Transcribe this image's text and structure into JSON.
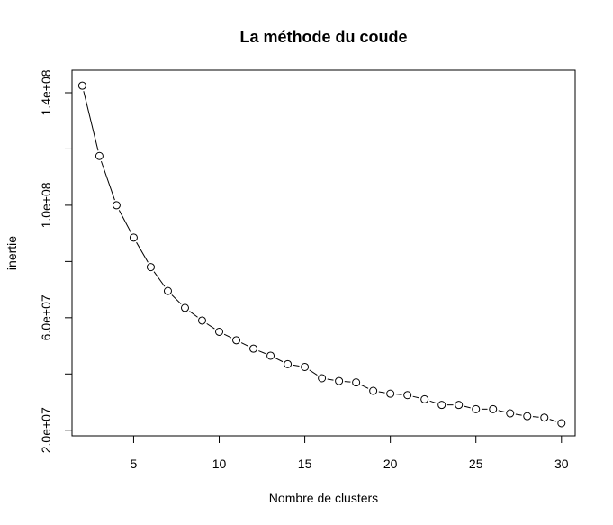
{
  "chart_data": {
    "type": "line",
    "title": "La méthode du coude",
    "xlabel": "Nombre de clusters",
    "ylabel": "inertie",
    "xlim": [
      1.4,
      30.8
    ],
    "ylim": [
      18000000,
      148000000
    ],
    "x_ticks": [
      5,
      10,
      15,
      20,
      25,
      30
    ],
    "x_tick_labels": [
      "5",
      "10",
      "15",
      "20",
      "25",
      "30"
    ],
    "y_ticks": [
      20000000,
      40000000,
      60000000,
      80000000,
      100000000,
      120000000,
      140000000
    ],
    "y_tick_labels": [
      "2.0e+07",
      "",
      "6.0e+07",
      "",
      "1.0e+08",
      "",
      "1.4e+08"
    ],
    "grid": false,
    "legend": "none",
    "line_style": "b",
    "marker": "open-circle",
    "series": [
      {
        "x": [
          2,
          3,
          4,
          5,
          6,
          7,
          8,
          9,
          10,
          11,
          12,
          13,
          14,
          15,
          16,
          17,
          18,
          19,
          20,
          21,
          22,
          23,
          24,
          25,
          26,
          27,
          28,
          29,
          30
        ],
        "values": [
          142500000,
          117500000,
          100000000,
          88500000,
          78000000,
          69500000,
          63500000,
          59000000,
          55000000,
          52000000,
          49000000,
          46500000,
          43500000,
          42500000,
          38500000,
          37500000,
          37000000,
          34000000,
          33000000,
          32500000,
          31000000,
          29000000,
          29000000,
          27500000,
          27500000,
          26000000,
          25000000,
          24500000,
          22500000
        ]
      }
    ],
    "colors": {
      "line": "#000000",
      "marker_stroke": "#000000",
      "marker_fill": "#ffffff",
      "frame": "#000000",
      "background": "#ffffff"
    }
  }
}
